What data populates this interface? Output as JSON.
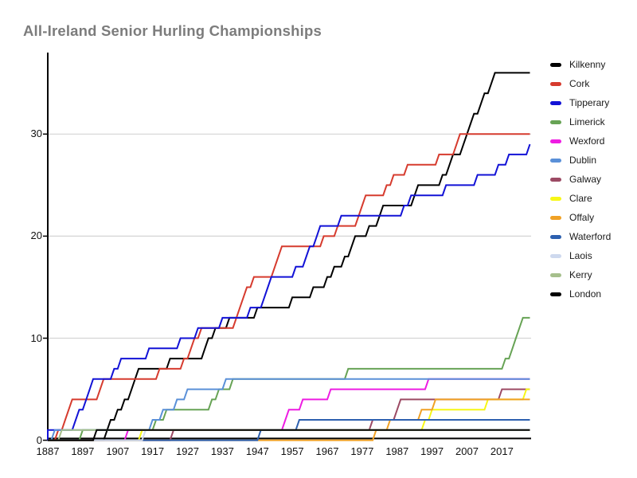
{
  "chart_data": {
    "type": "line",
    "subtype": "cumulative-wins-step",
    "title": "All-Ireland Senior Hurling Championships",
    "xlabel": "",
    "ylabel": "",
    "x_range": [
      1887,
      2025
    ],
    "y_range": [
      0,
      38
    ],
    "x_ticks": [
      1887,
      1897,
      1907,
      1917,
      1927,
      1937,
      1947,
      1957,
      1967,
      1977,
      1987,
      1997,
      2007,
      2017
    ],
    "y_ticks": [
      0,
      10,
      20,
      30
    ],
    "grid": "horizontal",
    "gridline_color": "#d4d4d4",
    "axis_color": "#000000",
    "title_color": "#7c7c7c",
    "legend_position": "right",
    "series": [
      {
        "name": "Kilkenny",
        "color": "#000000",
        "total": 36,
        "win_years": [
          1904,
          1905,
          1907,
          1909,
          1911,
          1912,
          1913,
          1922,
          1932,
          1933,
          1935,
          1939,
          1947,
          1957,
          1963,
          1967,
          1969,
          1972,
          1974,
          1975,
          1979,
          1982,
          1983,
          1992,
          1993,
          2000,
          2002,
          2003,
          2006,
          2007,
          2008,
          2009,
          2011,
          2012,
          2014,
          2015
        ]
      },
      {
        "name": "Cork",
        "color": "#d63b2e",
        "total": 30,
        "win_years": [
          1890,
          1892,
          1893,
          1894,
          1902,
          1903,
          1919,
          1926,
          1928,
          1929,
          1931,
          1941,
          1942,
          1943,
          1944,
          1946,
          1952,
          1953,
          1954,
          1966,
          1970,
          1976,
          1977,
          1978,
          1984,
          1986,
          1990,
          1999,
          2004,
          2005
        ]
      },
      {
        "name": "Tipperary",
        "color": "#1212d6",
        "total": 29,
        "win_years": [
          1887,
          1895,
          1896,
          1898,
          1899,
          1900,
          1906,
          1908,
          1916,
          1925,
          1930,
          1937,
          1945,
          1949,
          1950,
          1951,
          1958,
          1961,
          1962,
          1964,
          1965,
          1971,
          1989,
          1991,
          2001,
          2010,
          2016,
          2019,
          2025
        ]
      },
      {
        "name": "Limerick",
        "color": "#67a355",
        "total": 12,
        "win_years": [
          1897,
          1918,
          1921,
          1934,
          1936,
          1940,
          1973,
          2018,
          2020,
          2021,
          2022,
          2023
        ]
      },
      {
        "name": "Wexford",
        "color": "#ee1ce2",
        "total": 6,
        "win_years": [
          1910,
          1955,
          1956,
          1960,
          1968,
          1996
        ]
      },
      {
        "name": "Dublin",
        "color": "#5a90d8",
        "total": 6,
        "win_years": [
          1889,
          1917,
          1920,
          1924,
          1927,
          1938
        ]
      },
      {
        "name": "Galway",
        "color": "#9c4a64",
        "total": 5,
        "win_years": [
          1923,
          1980,
          1987,
          1988,
          2017
        ]
      },
      {
        "name": "Clare",
        "color": "#f7f716",
        "total": 5,
        "win_years": [
          1914,
          1995,
          1997,
          2013,
          2024
        ]
      },
      {
        "name": "Offaly",
        "color": "#f0a125",
        "total": 4,
        "win_years": [
          1981,
          1985,
          1994,
          1998
        ]
      },
      {
        "name": "Waterford",
        "color": "#2d60af",
        "total": 2,
        "win_years": [
          1948,
          1959
        ]
      },
      {
        "name": "Laois",
        "color": "#ced9ee",
        "total": 1,
        "win_years": [
          1915
        ]
      },
      {
        "name": "Kerry",
        "color": "#a6bf8c",
        "total": 1,
        "win_years": [
          1891
        ]
      },
      {
        "name": "London",
        "color": "#000000",
        "total": 1,
        "win_years": [
          1901
        ]
      }
    ]
  }
}
